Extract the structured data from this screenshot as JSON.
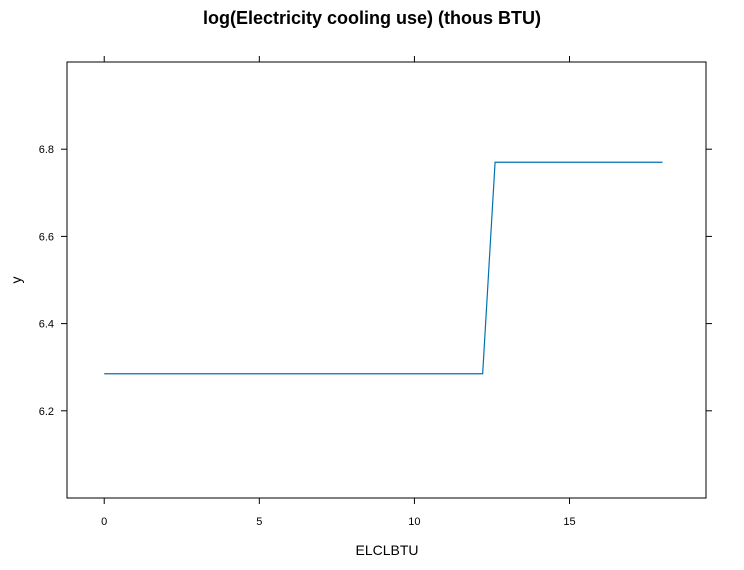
{
  "chart_data": {
    "type": "line",
    "title": "log(Electricity cooling use) (thous BTU)",
    "xlabel": "ELCLBTU",
    "ylabel": "y",
    "xlim": [
      -1.2,
      19.4
    ],
    "ylim": [
      6.0,
      7.0
    ],
    "x_ticks": [
      0,
      5,
      10,
      15
    ],
    "x_tick_labels": [
      "0",
      "5",
      "10",
      "15"
    ],
    "y_ticks": [
      6.2,
      6.4,
      6.6,
      6.8
    ],
    "y_tick_labels": [
      "6.2",
      "6.4",
      "6.6",
      "6.8"
    ],
    "grid": false,
    "series": [
      {
        "x": [
          0,
          12.2,
          12.6,
          18.0
        ],
        "y": [
          6.285,
          6.285,
          6.77,
          6.77
        ]
      }
    ],
    "colors": {
      "series": "#0072B2",
      "axis": "#000000"
    }
  }
}
